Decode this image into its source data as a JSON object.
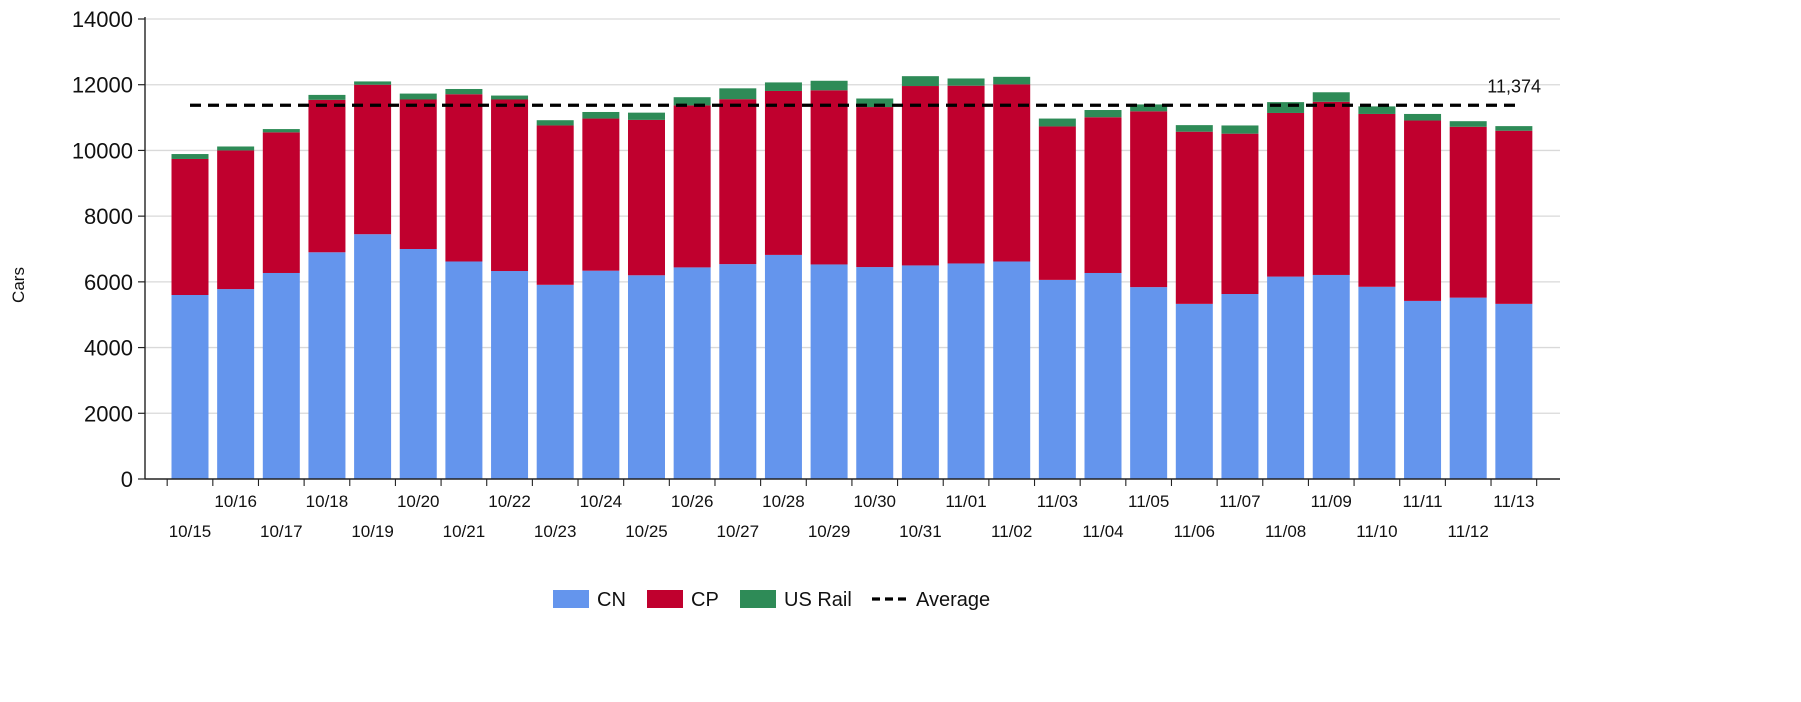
{
  "chart_data": {
    "type": "bar",
    "stacked": true,
    "ylabel": "Cars",
    "ylim": [
      0,
      14000
    ],
    "yticks": [
      0,
      2000,
      4000,
      6000,
      8000,
      10000,
      12000,
      14000
    ],
    "grid": true,
    "legend_position": "bottom",
    "categories": [
      "10/15",
      "10/16",
      "10/17",
      "10/18",
      "10/19",
      "10/20",
      "10/21",
      "10/22",
      "10/23",
      "10/24",
      "10/25",
      "10/26",
      "10/27",
      "10/28",
      "10/29",
      "10/30",
      "10/31",
      "11/01",
      "11/02",
      "11/03",
      "11/04",
      "11/05",
      "11/06",
      "11/07",
      "11/08",
      "11/09",
      "11/10",
      "11/11",
      "11/12",
      "11/13"
    ],
    "series": [
      {
        "name": "CN",
        "color": "#6495ED",
        "values": [
          5600,
          5780,
          6270,
          6900,
          7450,
          7000,
          6620,
          6330,
          5910,
          6340,
          6200,
          6440,
          6540,
          6820,
          6530,
          6450,
          6500,
          6560,
          6620,
          6060,
          6270,
          5840,
          5330,
          5630,
          6160,
          6210,
          5850,
          5420,
          5520,
          5330
        ]
      },
      {
        "name": "CP",
        "color": "#C0002E",
        "values": [
          4140,
          4220,
          4280,
          4640,
          4550,
          4550,
          5090,
          5220,
          4850,
          4630,
          4730,
          4930,
          5020,
          4990,
          5300,
          4870,
          5460,
          5410,
          5390,
          4670,
          4740,
          5350,
          5240,
          4880,
          4980,
          5270,
          5260,
          5490,
          5200,
          5270
        ]
      },
      {
        "name": "US Rail",
        "color": "#2E8B57",
        "values": [
          150,
          120,
          100,
          150,
          100,
          180,
          160,
          120,
          160,
          200,
          220,
          250,
          330,
          260,
          290,
          260,
          300,
          220,
          230,
          240,
          220,
          210,
          200,
          250,
          330,
          290,
          230,
          200,
          170,
          140
        ]
      }
    ],
    "average": {
      "name": "Average",
      "value": 11374,
      "label": "11,374"
    }
  }
}
